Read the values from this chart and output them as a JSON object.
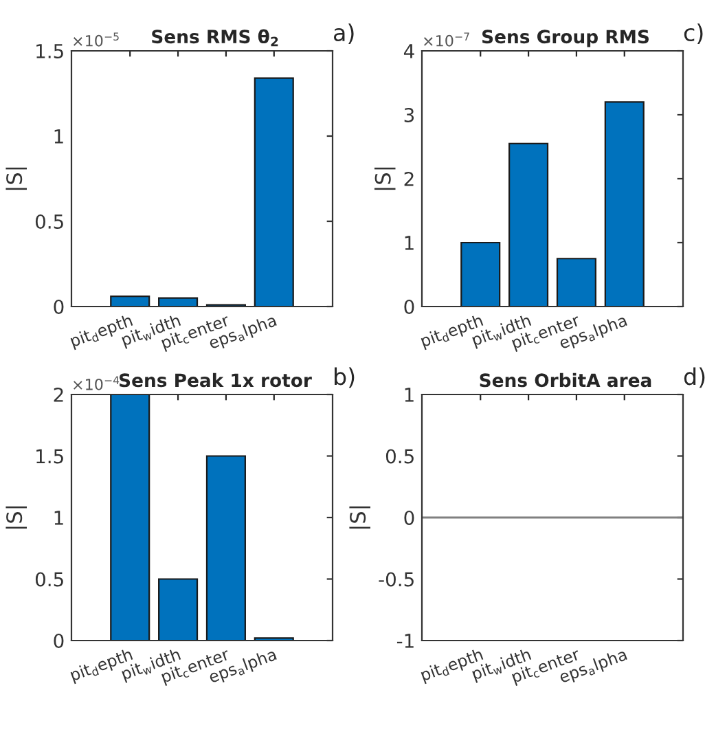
{
  "chart_data": [
    {
      "type": "bar",
      "title": "Sens RMS θ$_{2}$",
      "ylabel": "|S|",
      "categories": [
        "pit$_{d}$epth",
        "pit$_{w}$idth",
        "pit$_{c}$enter",
        "eps$_{a}$lpha"
      ],
      "values": [
        0.06,
        0.05,
        0.01,
        1.34
      ],
      "color": "#0072bd",
      "ylim": [
        0,
        1.5
      ],
      "yticks": [
        0,
        0.5,
        1,
        1.5
      ],
      "annotations": [
        "×10$^{−5}$",
        "a)"
      ]
    },
    {
      "type": "bar",
      "title": "Sens Group RMS",
      "ylabel": "|S|",
      "categories": [
        "pit$_{d}$epth",
        "pit$_{w}$idth",
        "pit$_{c}$enter",
        "eps$_{a}$lpha"
      ],
      "values": [
        1.0,
        2.55,
        0.75,
        3.2
      ],
      "color": "#0072bd",
      "ylim": [
        0,
        4
      ],
      "yticks": [
        0,
        1,
        2,
        3,
        4
      ],
      "annotations": [
        "×10$^{−7}$",
        "c)"
      ]
    },
    {
      "type": "bar",
      "title": "Sens Peak 1x rotor",
      "ylabel": "|S|",
      "categories": [
        "pit$_{d}$epth",
        "pit$_{w}$idth",
        "pit$_{c}$enter",
        "eps$_{a}$lpha"
      ],
      "values": [
        2.0,
        0.5,
        1.5,
        0.02
      ],
      "color": "#0072bd",
      "ylim": [
        0,
        2
      ],
      "yticks": [
        0,
        0.5,
        1,
        1.5,
        2
      ],
      "annotations": [
        "×10$^{−4}$",
        "b)"
      ]
    },
    {
      "type": "bar",
      "title": "Sens OrbitA area",
      "ylabel": "|S|",
      "categories": [
        "pit$_{d}$epth",
        "pit$_{w}$idth",
        "pit$_{c}$enter",
        "eps$_{a}$lpha"
      ],
      "values": [
        0,
        0,
        0,
        0
      ],
      "color": "#0072bd",
      "ylim": [
        -1,
        1
      ],
      "yticks": [
        -1,
        -0.5,
        0,
        0.5,
        1
      ],
      "annotations": [
        "d)"
      ],
      "ref_lines": [
        {
          "axis": "y",
          "value": 0,
          "color": "#808080"
        }
      ]
    }
  ]
}
